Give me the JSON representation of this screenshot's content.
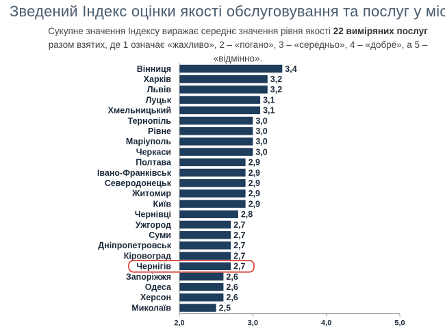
{
  "header": {
    "title": "Зведений Індекс оцінки якості обслуговування та послуг у місті",
    "subtitle_part1": "Сукупне значення Індексу виражає середнє значення рівня якості ",
    "subtitle_bold1": "22 виміряних послуг",
    "subtitle_part2": " разом взятих, де 1 означає «жахливо», 2 – «погано», 3 – «середньо», 4 – «добре», а 5 – «відмінно»."
  },
  "chart_data": {
    "type": "bar",
    "orientation": "horizontal",
    "categories": [
      "Вінниця",
      "Харків",
      "Львів",
      "Луцьк",
      "Хмельницький",
      "Тернопіль",
      "Рівне",
      "Маріуполь",
      "Черкаси",
      "Полтава",
      "Івано-Франківськ",
      "Северодонецьк",
      "Житомир",
      "Київ",
      "Чернівці",
      "Ужгород",
      "Суми",
      "Дніпропетровськ",
      "Кіровоград",
      "Чернігів",
      "Запоріжжя",
      "Одеса",
      "Херсон",
      "Миколаїв"
    ],
    "values": [
      3.4,
      3.2,
      3.2,
      3.1,
      3.1,
      3.0,
      3.0,
      3.0,
      3.0,
      2.9,
      2.9,
      2.9,
      2.9,
      2.9,
      2.8,
      2.7,
      2.7,
      2.7,
      2.7,
      2.7,
      2.6,
      2.6,
      2.6,
      2.5
    ],
    "value_labels": [
      "3,4",
      "3,2",
      "3,2",
      "3,1",
      "3,1",
      "3,0",
      "3,0",
      "3,0",
      "3,0",
      "2,9",
      "2,9",
      "2,9",
      "2,9",
      "2,9",
      "2,8",
      "2,7",
      "2,7",
      "2,7",
      "2,7",
      "2,7",
      "2,6",
      "2,6",
      "2,6",
      "2,5"
    ],
    "xlim": [
      2.0,
      5.0
    ],
    "x_ticks": [
      "2,0",
      "3,0",
      "4,0",
      "5,0"
    ],
    "x_tick_values": [
      2.0,
      3.0,
      4.0,
      5.0
    ],
    "highlighted": "Чернігів",
    "grid": false,
    "colors": {
      "bar": "#1f3d5c",
      "highlight_outline": "#d9342b",
      "axis": "#999999"
    }
  }
}
